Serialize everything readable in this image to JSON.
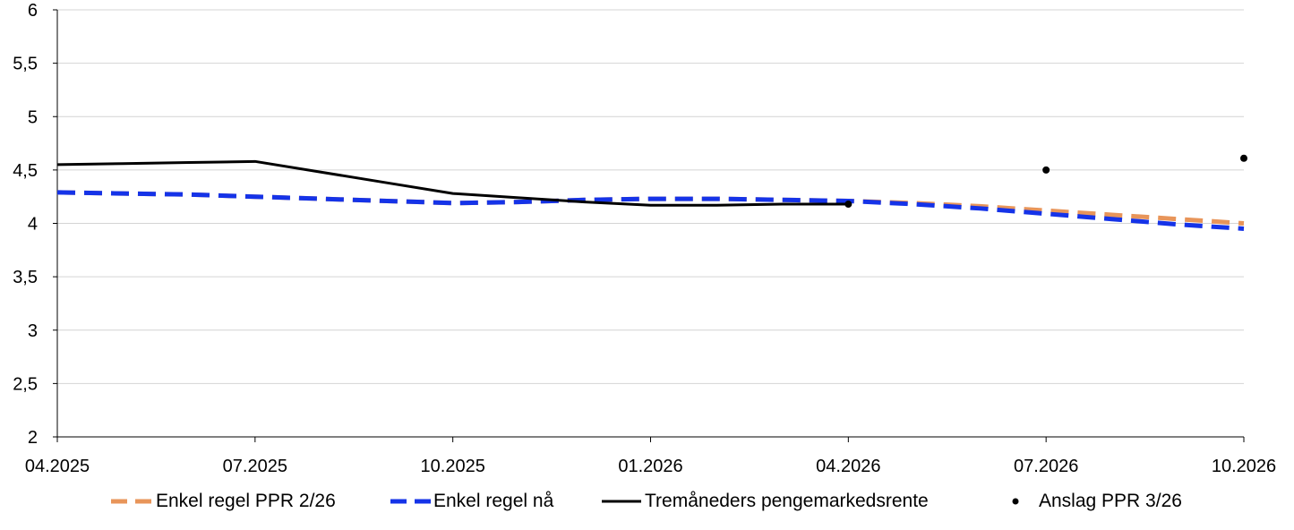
{
  "chart_data": {
    "type": "line",
    "categories": [
      "04.2025",
      "05.2025",
      "06.2025",
      "07.2025",
      "08.2025",
      "09.2025",
      "10.2025",
      "11.2025",
      "12.2025",
      "01.2026",
      "02.2026",
      "03.2026",
      "04.2026",
      "05.2026",
      "06.2026",
      "07.2026",
      "08.2026",
      "09.2026",
      "10.2026"
    ],
    "x_tick_labels": [
      "04.2025",
      "07.2025",
      "10.2025",
      "01.2026",
      "04.2026",
      "07.2026",
      "10.2026"
    ],
    "y_tick_labels": [
      "2",
      "2,5",
      "3",
      "3,5",
      "4",
      "4,5",
      "5",
      "5,5",
      "6"
    ],
    "ylim": [
      2,
      6
    ],
    "grid": "horizontal",
    "legend_position": "bottom",
    "series": [
      {
        "name": "Enkel regel PPR 2/26",
        "style": "dashed",
        "color": "#E8955A",
        "values": [
          4.29,
          4.28,
          4.27,
          4.25,
          4.23,
          4.21,
          4.19,
          4.2,
          4.22,
          4.23,
          4.23,
          4.22,
          4.21,
          4.19,
          4.16,
          4.12,
          4.08,
          4.04,
          4.0
        ]
      },
      {
        "name": "Enkel regel nå",
        "style": "dashed",
        "color": "#1533E8",
        "values": [
          4.29,
          4.28,
          4.27,
          4.25,
          4.23,
          4.21,
          4.19,
          4.2,
          4.22,
          4.23,
          4.23,
          4.22,
          4.21,
          4.18,
          4.14,
          4.09,
          4.04,
          3.99,
          3.95
        ]
      },
      {
        "name": "Tremåneders pengemarkedsrente",
        "style": "solid",
        "color": "#000000",
        "values": [
          4.55,
          4.56,
          4.57,
          4.58,
          4.48,
          4.38,
          4.28,
          4.24,
          4.2,
          4.17,
          4.17,
          4.18,
          4.18,
          null,
          null,
          null,
          null,
          null,
          null
        ]
      },
      {
        "name": "Anslag PPR 3/26",
        "style": "points",
        "color": "#000000",
        "values": [
          null,
          null,
          null,
          null,
          null,
          null,
          null,
          null,
          null,
          null,
          null,
          null,
          4.18,
          null,
          null,
          4.5,
          null,
          null,
          4.61
        ]
      }
    ]
  }
}
